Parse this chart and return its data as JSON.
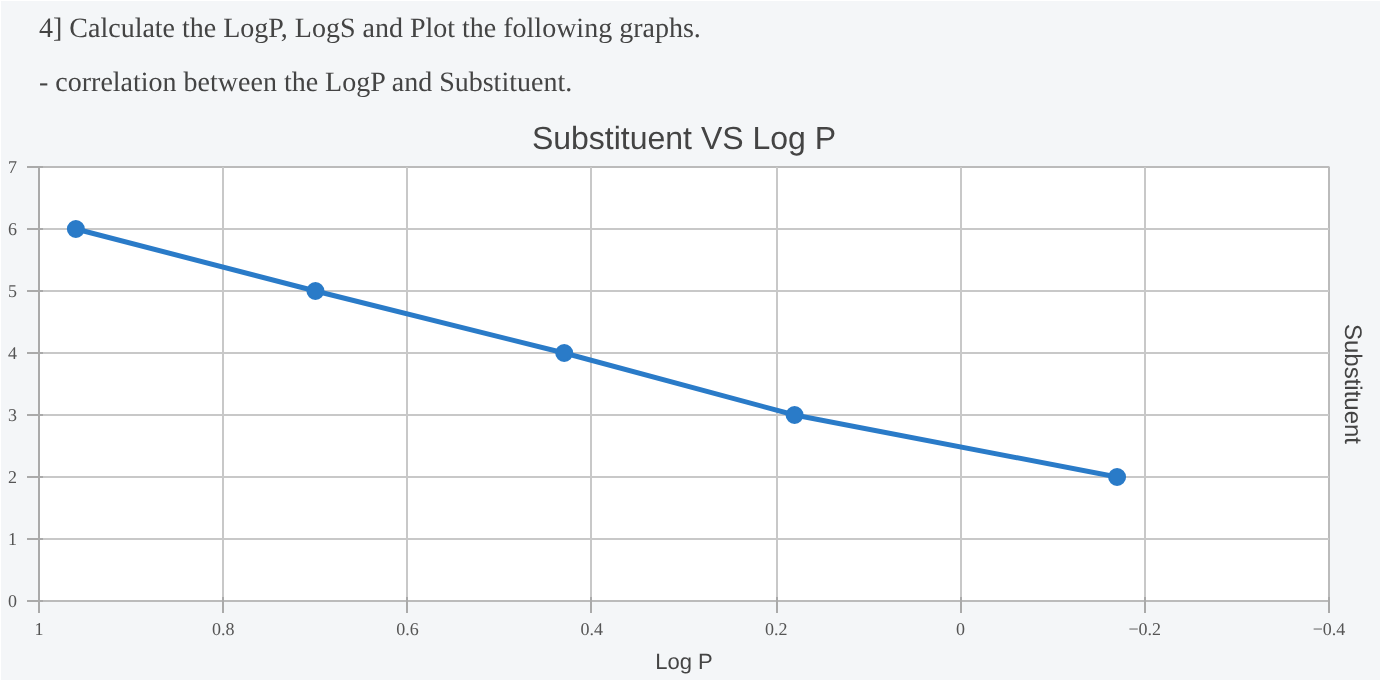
{
  "chart_data": {
    "type": "line",
    "title": "Substituent VS Log P",
    "xlabel": "Log P",
    "ylabel": "Substituent",
    "annotations": [
      "4] Calculate the LogP, LogS and Plot the following graphs.",
      "- correlation between the LogP and Substituent."
    ],
    "x": [
      0.96,
      0.7,
      0.43,
      0.18,
      -0.17
    ],
    "series": [
      {
        "color": "#2a7bc8",
        "values": [
          6,
          5,
          4,
          3,
          2
        ]
      }
    ],
    "xlim": [
      1,
      -0.4
    ],
    "xticks": [
      1,
      0.8,
      0.6,
      0.4,
      0.2,
      0,
      -0.2,
      -0.4
    ],
    "ylim": [
      0,
      7
    ],
    "yticks": [
      0,
      1,
      2,
      3,
      4,
      5,
      6,
      7
    ],
    "grid": true,
    "marker": "circle",
    "line_style": "solid"
  }
}
